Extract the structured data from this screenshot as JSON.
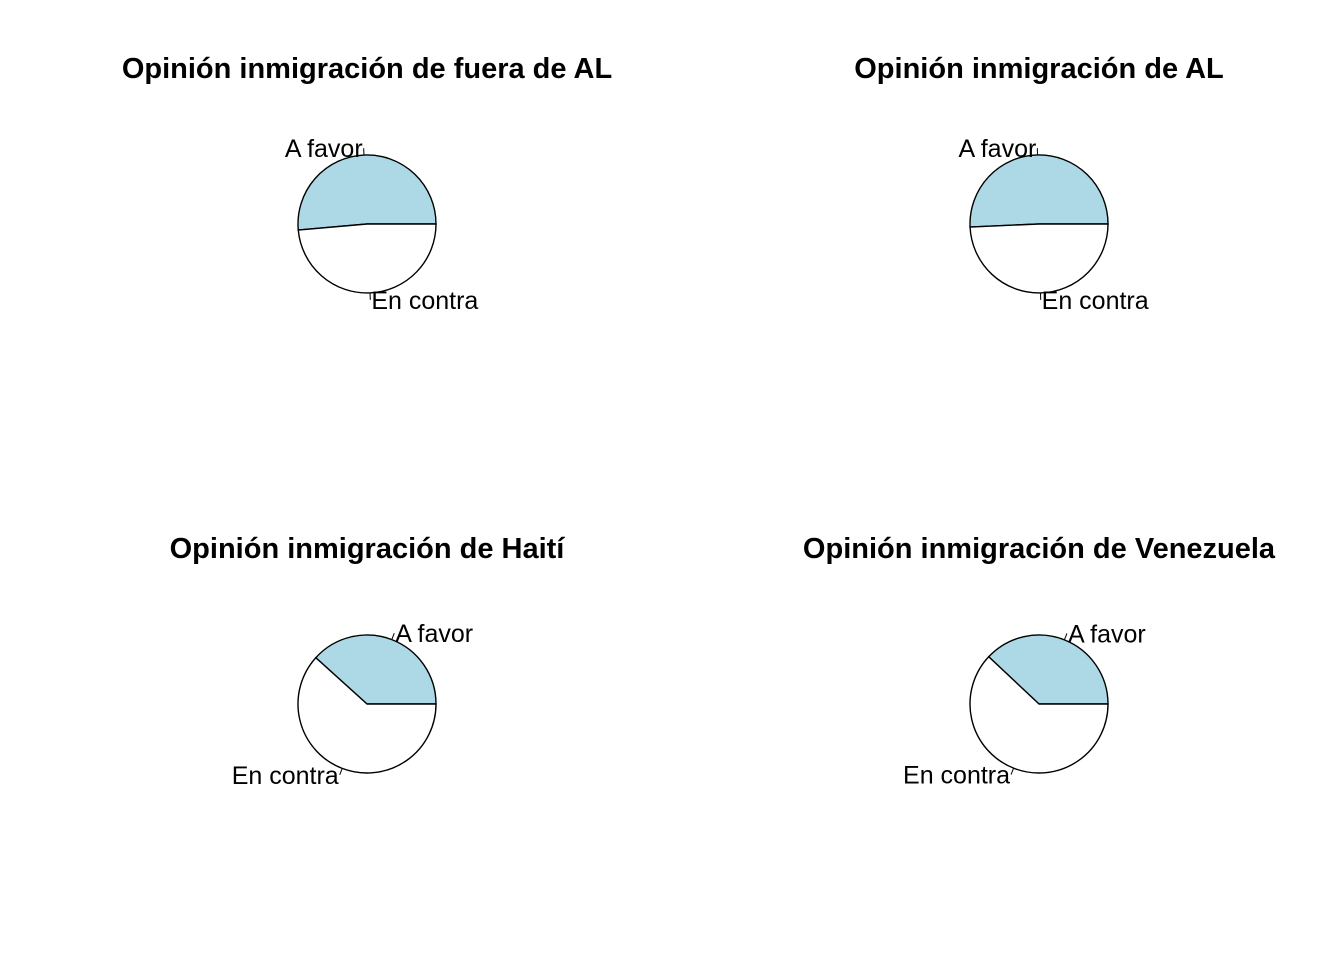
{
  "chart_data": [
    {
      "type": "pie",
      "title": "Opinión inmigración de fuera de AL",
      "slices": [
        {
          "label": "A favor",
          "value": 0.514,
          "color": "#add8e6"
        },
        {
          "label": "En contra",
          "value": 0.486,
          "color": "#ffffff"
        }
      ]
    },
    {
      "type": "pie",
      "title": "Opinión inmigración de AL",
      "slices": [
        {
          "label": "A favor",
          "value": 0.507,
          "color": "#add8e6"
        },
        {
          "label": "En contra",
          "value": 0.493,
          "color": "#ffffff"
        }
      ]
    },
    {
      "type": "pie",
      "title": "Opinión inmigración de Haití",
      "slices": [
        {
          "label": "A favor",
          "value": 0.383,
          "color": "#add8e6"
        },
        {
          "label": "En contra",
          "value": 0.617,
          "color": "#ffffff"
        }
      ]
    },
    {
      "type": "pie",
      "title": "Opinión inmigración de Venezuela",
      "slices": [
        {
          "label": "A favor",
          "value": 0.38,
          "color": "#add8e6"
        },
        {
          "label": "En contra",
          "value": 0.62,
          "color": "#ffffff"
        }
      ]
    }
  ]
}
